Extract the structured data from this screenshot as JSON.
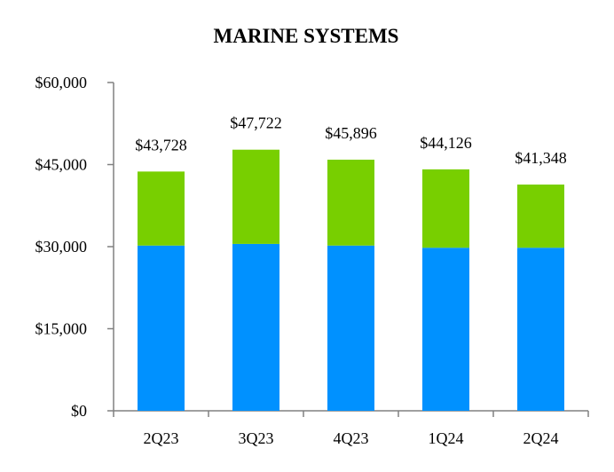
{
  "chart_data": {
    "type": "bar",
    "stacked": true,
    "title": "MARINE SYSTEMS",
    "xlabel": "",
    "ylabel": "",
    "categories": [
      "2Q23",
      "3Q23",
      "4Q23",
      "1Q24",
      "2Q24"
    ],
    "series": [
      {
        "color": "#0091FF",
        "values": [
          30200,
          30500,
          30200,
          29800,
          29800
        ]
      },
      {
        "color": "#78CF00",
        "values": [
          13528,
          17222,
          15696,
          14326,
          11548
        ]
      }
    ],
    "totals": [
      43728,
      47722,
      45896,
      44126,
      41348
    ],
    "total_labels": [
      "$43,728",
      "$47,722",
      "$45,896",
      "$44,126",
      "$41,348"
    ],
    "ylim": [
      0,
      60000
    ],
    "yticks": [
      0,
      15000,
      30000,
      45000,
      60000
    ],
    "ytick_labels": [
      "$0",
      "$15,000",
      "$30,000",
      "$45,000",
      "$60,000"
    ],
    "grid": false,
    "legend": "none"
  }
}
